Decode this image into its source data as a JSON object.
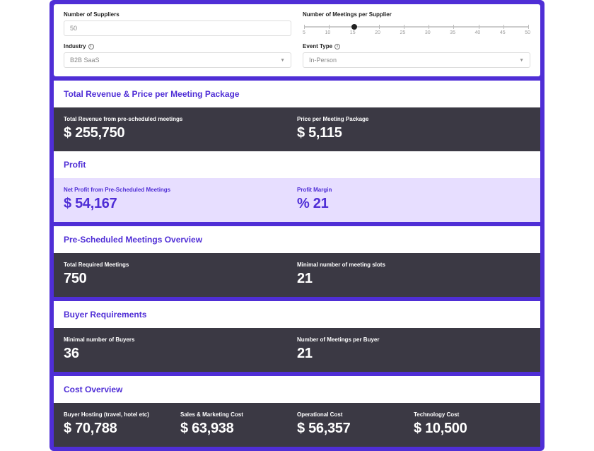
{
  "colors": {
    "accent": "#4f2ed6",
    "dark_panel": "#3b3944",
    "lavender_panel": "#e7deff",
    "border": "#dddddd",
    "muted_text": "#888888"
  },
  "form": {
    "suppliers": {
      "label": "Number of Suppliers",
      "value": "50"
    },
    "meetings_per_supplier": {
      "label": "Number of Meetings per Supplier",
      "ticks": [
        "5",
        "10",
        "15",
        "20",
        "25",
        "30",
        "35",
        "40",
        "45",
        "50"
      ],
      "value": 15,
      "min": 5,
      "max": 50,
      "thumb_pct": 22.2
    },
    "industry": {
      "label": "Industry",
      "value": "B2B SaaS"
    },
    "event_type": {
      "label": "Event Type",
      "value": "In-Person"
    }
  },
  "sections": {
    "revenue": {
      "title": "Total Revenue & Price per Meeting Package",
      "metrics": [
        {
          "label": "Total Revenue from pre-scheduled meetings",
          "value": "$ 255,750"
        },
        {
          "label": "Price per Meeting Package",
          "value": "$ 5,115"
        }
      ]
    },
    "profit": {
      "title": "Profit",
      "metrics": [
        {
          "label": "Net Profit from Pre-Scheduled Meetings",
          "value": "$ 54,167"
        },
        {
          "label": "Profit Margin",
          "value": "% 21"
        }
      ]
    },
    "overview": {
      "title": "Pre-Scheduled Meetings Overview",
      "metrics": [
        {
          "label": "Total Required Meetings",
          "value": "750"
        },
        {
          "label": "Minimal number of meeting slots",
          "value": "21"
        }
      ]
    },
    "buyers": {
      "title": "Buyer Requirements",
      "metrics": [
        {
          "label": "Minimal number of Buyers",
          "value": "36"
        },
        {
          "label": "Number of Meetings per Buyer",
          "value": "21"
        }
      ]
    },
    "costs": {
      "title": "Cost Overview",
      "metrics": [
        {
          "label": "Buyer Hosting (travel, hotel etc)",
          "value": "$ 70,788"
        },
        {
          "label": "Sales & Marketing Cost",
          "value": "$ 63,938"
        },
        {
          "label": "Operational Cost",
          "value": "$ 56,357"
        },
        {
          "label": "Technology Cost",
          "value": "$ 10,500"
        }
      ]
    }
  }
}
